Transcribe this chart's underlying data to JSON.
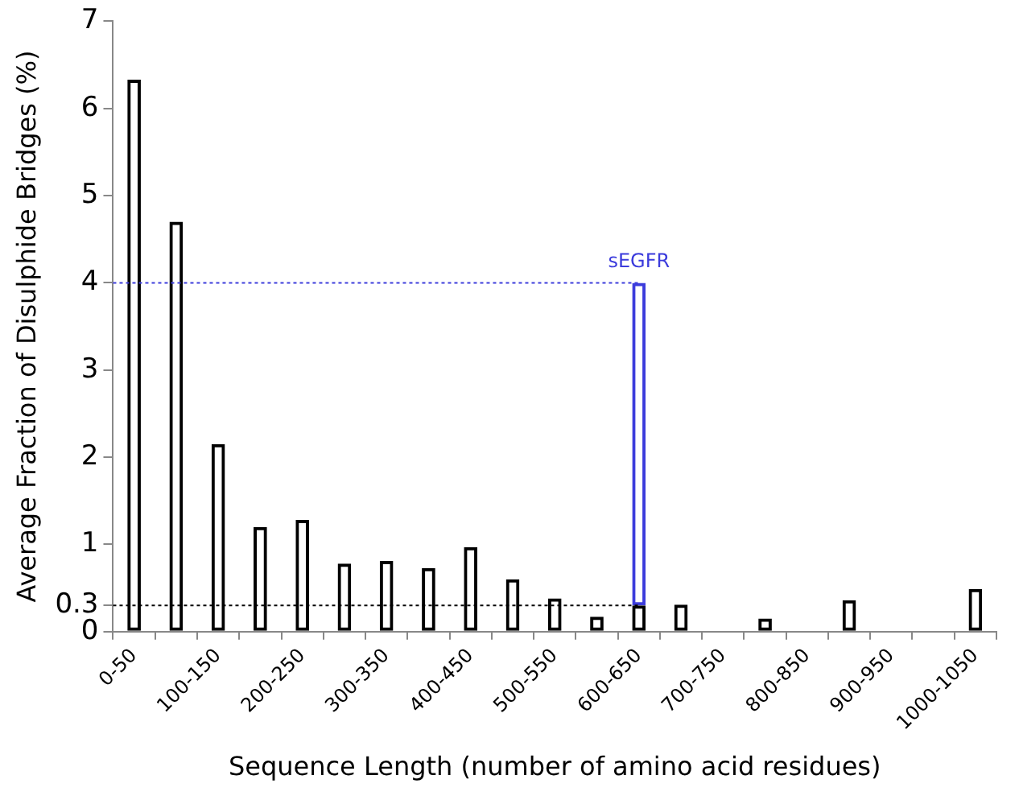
{
  "chart_data": {
    "type": "bar",
    "xlabel": "Sequence Length (number of amino acid residues)",
    "ylabel": "Average Fraction of Disulphide Bridges (%)",
    "categories": [
      "0-50",
      null,
      "100-150",
      null,
      "200-250",
      null,
      "300-350",
      null,
      "400-450",
      null,
      "500-550",
      null,
      "600-650",
      null,
      "700-750",
      null,
      "800-850",
      null,
      "900-950",
      null,
      "1000-1050"
    ],
    "stacked": true,
    "series": [
      {
        "color": "#000000",
        "values": [
          6.33,
          4.7,
          2.15,
          1.2,
          1.28,
          0.78,
          0.81,
          0.73,
          0.97,
          0.6,
          0.38,
          0.17,
          0.3,
          0.31,
          null,
          0.15,
          null,
          0.36,
          null,
          null,
          0.49
        ]
      },
      {
        "name": "sEGFR",
        "color": "#3c3cdc",
        "values": [
          null,
          null,
          null,
          null,
          null,
          null,
          null,
          null,
          null,
          null,
          null,
          null,
          3.7,
          null,
          null,
          null,
          null,
          null,
          null,
          null,
          null
        ]
      }
    ],
    "ylim": [
      0,
      7
    ],
    "yticks": [
      0,
      0.3,
      1,
      2,
      3,
      4,
      5,
      6,
      7
    ],
    "ref_lines": [
      {
        "axis": "y",
        "value": 4,
        "color": "#3c3cdc",
        "line_style": "dotted"
      },
      {
        "axis": "y",
        "value": 0.3,
        "color": "#000000",
        "line_style": "dotted"
      }
    ],
    "grid": false,
    "legend": false
  }
}
